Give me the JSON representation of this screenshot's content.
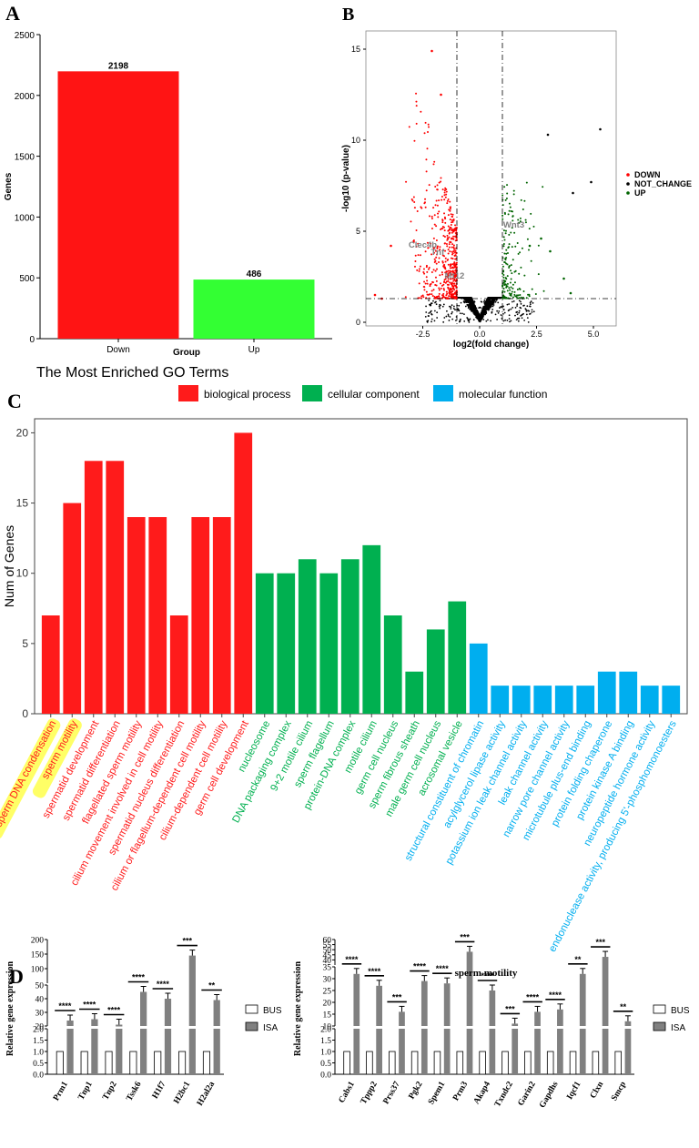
{
  "panels": {
    "A": "A",
    "B": "B",
    "C": "C",
    "D": "D"
  },
  "colors": {
    "red": "#ff1414",
    "green": "#33ff33",
    "go_bp": "#ff1b1b",
    "go_cc": "#00b050",
    "go_mf": "#00aeef",
    "highlight": "#ffff66",
    "volcano_green": "#006400",
    "bar_grey": "#808080"
  },
  "chart_data": [
    {
      "id": "A",
      "type": "bar",
      "categories": [
        "Down",
        "Up"
      ],
      "values": [
        2198,
        486
      ],
      "value_labels": [
        "2198",
        "486"
      ],
      "xlabel": "Group",
      "ylabel": "Genes",
      "ylim": [
        0,
        2500
      ],
      "yticks": [
        "0",
        "500",
        "1000",
        "1500",
        "2000",
        "2500"
      ],
      "bar_colors": [
        "#ff1414",
        "#33ff33"
      ]
    },
    {
      "id": "B",
      "type": "scatter",
      "xlabel": "log2(fold change)",
      "ylabel": "-log10 (p-value)",
      "xlim": [
        -5,
        6
      ],
      "ylim": [
        -0.2,
        16
      ],
      "xticks": [
        "-2.5",
        "0.0",
        "2.5",
        "5.0"
      ],
      "yticks": [
        "0",
        "5",
        "10",
        "15"
      ],
      "thresholds": {
        "x": [
          -1,
          1
        ],
        "y": 1.3
      },
      "legend": [
        "DOWN",
        "NOT_CHANGE",
        "UP"
      ],
      "labels": [
        {
          "text": "Clec4b",
          "x": -2.5,
          "y": 4.1
        },
        {
          "text": "Tnf",
          "x": -1.85,
          "y": 3.7
        },
        {
          "text": "Mt12",
          "x": -1.1,
          "y": 2.4
        },
        {
          "text": "Wnt3",
          "x": 1.5,
          "y": 5.2
        }
      ],
      "outlier_points": [
        {
          "x": -4.6,
          "y": 1.5,
          "group": "DOWN"
        },
        {
          "x": -4.3,
          "y": 1.3,
          "group": "DOWN"
        },
        {
          "x": -2.1,
          "y": 14.9,
          "group": "DOWN"
        },
        {
          "x": -1.7,
          "y": 12.5,
          "group": "DOWN"
        },
        {
          "x": -3.9,
          "y": 4.2,
          "group": "DOWN"
        },
        {
          "x": 3.0,
          "y": 10.3,
          "group": "NOT_CHANGE"
        },
        {
          "x": 5.3,
          "y": 10.6,
          "group": "NOT_CHANGE"
        },
        {
          "x": 4.9,
          "y": 7.7,
          "group": "NOT_CHANGE"
        },
        {
          "x": 4.1,
          "y": 7.1,
          "group": "NOT_CHANGE"
        },
        {
          "x": 2.7,
          "y": 4.6,
          "group": "UP"
        },
        {
          "x": 3.1,
          "y": 3.9,
          "group": "UP"
        },
        {
          "x": 3.7,
          "y": 2.4,
          "group": "UP"
        },
        {
          "x": 4.0,
          "y": 1.6,
          "group": "UP"
        },
        {
          "x": 2.2,
          "y": 4.2,
          "group": "UP"
        }
      ]
    },
    {
      "id": "C",
      "type": "bar",
      "title": "The Most Enriched GO Terms",
      "ylabel": "Num of Genes",
      "ylim": [
        0,
        21
      ],
      "yticks": [
        "0",
        "5",
        "10",
        "15",
        "20"
      ],
      "legend": [
        {
          "name": "biological process",
          "color": "#ff1b1b"
        },
        {
          "name": "cellular component",
          "color": "#00b050"
        },
        {
          "name": "molecular function",
          "color": "#00aeef"
        }
      ],
      "categories": [
        "sperm DNA condensation",
        "sperm motility",
        "spermatid development",
        "spermatid differentiation",
        "flagellated sperm motility",
        "cilium movement involved in cell motility",
        "spermatid nucleus differentiation",
        "cilium or flagellum-dependent cell motility",
        "cilium-dependent cell motility",
        "germ cell development",
        "nucleosome",
        "DNA packaging complex",
        "9+2 motile cilium",
        "sperm flagellum",
        "protein-DNA complex",
        "motile cilium",
        "germ cell nucleus",
        "sperm fibrous sheath",
        "male germ cell nucleus",
        "acrosomal vesicle",
        "structural constituent of chromatin",
        "acylglycerol lipase activity",
        "potassium ion leak channel activity",
        "leak channel activity",
        "narrow pore channel activity",
        "microtubule plus-end binding",
        "protein folding chaperone",
        "protein kinase A binding",
        "neuropeptide hormone activity",
        "endonuclease activity, producing 5'-phosphomonoesters"
      ],
      "values": [
        7,
        15,
        18,
        18,
        14,
        14,
        7,
        14,
        14,
        20,
        10,
        10,
        11,
        10,
        11,
        12,
        7,
        3,
        6,
        8,
        5,
        2,
        2,
        2,
        2,
        2,
        3,
        3,
        2,
        2
      ],
      "groups": [
        "bp",
        "bp",
        "bp",
        "bp",
        "bp",
        "bp",
        "bp",
        "bp",
        "bp",
        "bp",
        "cc",
        "cc",
        "cc",
        "cc",
        "cc",
        "cc",
        "cc",
        "cc",
        "cc",
        "cc",
        "mf",
        "mf",
        "mf",
        "mf",
        "mf",
        "mf",
        "mf",
        "mf",
        "mf",
        "mf"
      ],
      "highlighted": [
        "sperm DNA condensation",
        "sperm motility"
      ]
    },
    {
      "id": "D1",
      "type": "bar",
      "ylabel": "Relative gene expression",
      "legend": [
        "BUS",
        "ISA"
      ],
      "categories": [
        "Prm1",
        "Tnp1",
        "Tnp2",
        "Tssk6",
        "H1f7",
        "H2bc1",
        "H2al2a"
      ],
      "series": [
        {
          "name": "BUS",
          "values": [
            1,
            1,
            1,
            1,
            1,
            1,
            1
          ]
        },
        {
          "name": "ISA",
          "values": [
            24,
            25,
            21,
            45,
            40,
            145,
            39
          ]
        }
      ],
      "significance": [
        "****",
        "****",
        "****",
        "****",
        "****",
        "***",
        "**"
      ],
      "yticks": [
        "0.0",
        "0.5",
        "1.0",
        "1.5",
        "2.0",
        "20",
        "30",
        "40",
        "50",
        "100",
        "150",
        "200"
      ]
    },
    {
      "id": "D2",
      "type": "bar",
      "title": "sperm motility",
      "ylabel": "Relative gene expression",
      "legend": [
        "BUS",
        "ISA"
      ],
      "categories": [
        "Cabs1",
        "Tppp2",
        "Prss37",
        "Pgk2",
        "Spem1",
        "Prm3",
        "Akap4",
        "Txndc2",
        "Garin2",
        "Gapdhs",
        "Iqcf1",
        "Clxn",
        "Smcp"
      ],
      "series": [
        {
          "name": "BUS",
          "values": [
            1,
            1,
            1,
            1,
            1,
            1,
            1,
            1,
            1,
            1,
            1,
            1,
            1
          ]
        },
        {
          "name": "ISA",
          "values": [
            32,
            27,
            16,
            29,
            28,
            48,
            25,
            11,
            16,
            17,
            32,
            43,
            12
          ]
        }
      ],
      "significance": [
        "****",
        "****",
        "***",
        "****",
        "****",
        "***",
        "****",
        "***",
        "****",
        "****",
        "**",
        "***",
        "**"
      ],
      "yticks": [
        "0.0",
        "0.5",
        "1.0",
        "1.5",
        "2.0",
        "10",
        "15",
        "20",
        "25",
        "30",
        "35",
        "40",
        "45",
        "50",
        "55",
        "60"
      ]
    }
  ]
}
